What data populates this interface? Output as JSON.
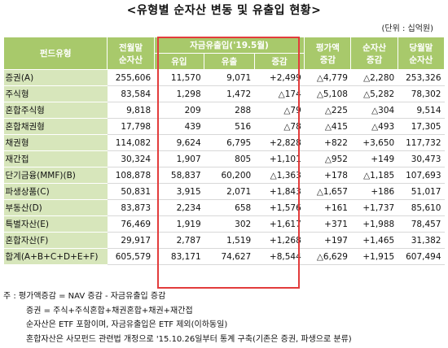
{
  "title": "<유형별 순자산 변동 및 유출입 현황>",
  "unit": "(단위 : 십억원)",
  "headers": {
    "fund_type": "펀드유형",
    "prev_month_l1": "전월말",
    "prev_month_l2": "순자산",
    "flow_group": "자금유출입('19.5월)",
    "inflow": "유입",
    "outflow": "유출",
    "net": "증감",
    "valuation_l1": "평가액",
    "valuation_l2": "증감",
    "nav_change_l1": "순자산",
    "nav_change_l2": "증감",
    "current_l1": "당월말",
    "current_l2": "순자산"
  },
  "rows": [
    {
      "name": "증권(A)",
      "prev": "255,606",
      "inflow": "11,570",
      "outflow": "9,071",
      "net": "+2,499",
      "val": "△4,779",
      "navchg": "△2,280",
      "cur": "253,326"
    },
    {
      "name": "주식형",
      "prev": "83,584",
      "inflow": "1,298",
      "outflow": "1,472",
      "net": "△174",
      "val": "△5,108",
      "navchg": "△5,282",
      "cur": "78,302"
    },
    {
      "name": "혼합주식형",
      "prev": "9,818",
      "inflow": "209",
      "outflow": "288",
      "net": "△79",
      "val": "△225",
      "navchg": "△304",
      "cur": "9,514"
    },
    {
      "name": "혼합채권형",
      "prev": "17,798",
      "inflow": "439",
      "outflow": "516",
      "net": "△78",
      "val": "△415",
      "navchg": "△493",
      "cur": "17,305"
    },
    {
      "name": "채권형",
      "prev": "114,082",
      "inflow": "9,624",
      "outflow": "6,795",
      "net": "+2,828",
      "val": "+822",
      "navchg": "+3,650",
      "cur": "117,732"
    },
    {
      "name": "재간접",
      "prev": "30,324",
      "inflow": "1,907",
      "outflow": "805",
      "net": "+1,101",
      "val": "△952",
      "navchg": "+149",
      "cur": "30,473"
    },
    {
      "name": "단기금융(MMF)(B)",
      "prev": "108,878",
      "inflow": "58,837",
      "outflow": "60,200",
      "net": "△1,363",
      "val": "+178",
      "navchg": "△1,185",
      "cur": "107,693"
    },
    {
      "name": "파생상품(C)",
      "prev": "50,831",
      "inflow": "3,915",
      "outflow": "2,071",
      "net": "+1,843",
      "val": "△1,657",
      "navchg": "+186",
      "cur": "51,017"
    },
    {
      "name": "부동산(D)",
      "prev": "83,873",
      "inflow": "2,234",
      "outflow": "658",
      "net": "+1,576",
      "val": "+161",
      "navchg": "+1,737",
      "cur": "85,610"
    },
    {
      "name": "특별자산(E)",
      "prev": "76,469",
      "inflow": "1,919",
      "outflow": "302",
      "net": "+1,617",
      "val": "+371",
      "navchg": "+1,988",
      "cur": "78,457"
    },
    {
      "name": "혼합자산(F)",
      "prev": "29,917",
      "inflow": "2,787",
      "outflow": "1,519",
      "net": "+1,268",
      "val": "+197",
      "navchg": "+1,465",
      "cur": "31,382"
    },
    {
      "name": "합계(A+B+C+D+E+F)",
      "prev": "605,579",
      "inflow": "83,171",
      "outflow": "74,627",
      "net": "+8,544",
      "val": "△6,629",
      "navchg": "+1,915",
      "cur": "607,494"
    }
  ],
  "notes": {
    "n1": "주 : 평가액증감 = NAV 증감 - 자금유출입 증감",
    "n2": "증권 = 주식+주식혼합+채권혼합+채권+재간접",
    "n3": "순자산은 ETF 포함이며, 자금유출입은 ETF 제외(이하동일)",
    "n4": "혼합자산은 사모펀드 관련법 개정으로 '15.10.26일부터 통계 구축(기존은 증권, 파생으로 분류)"
  }
}
